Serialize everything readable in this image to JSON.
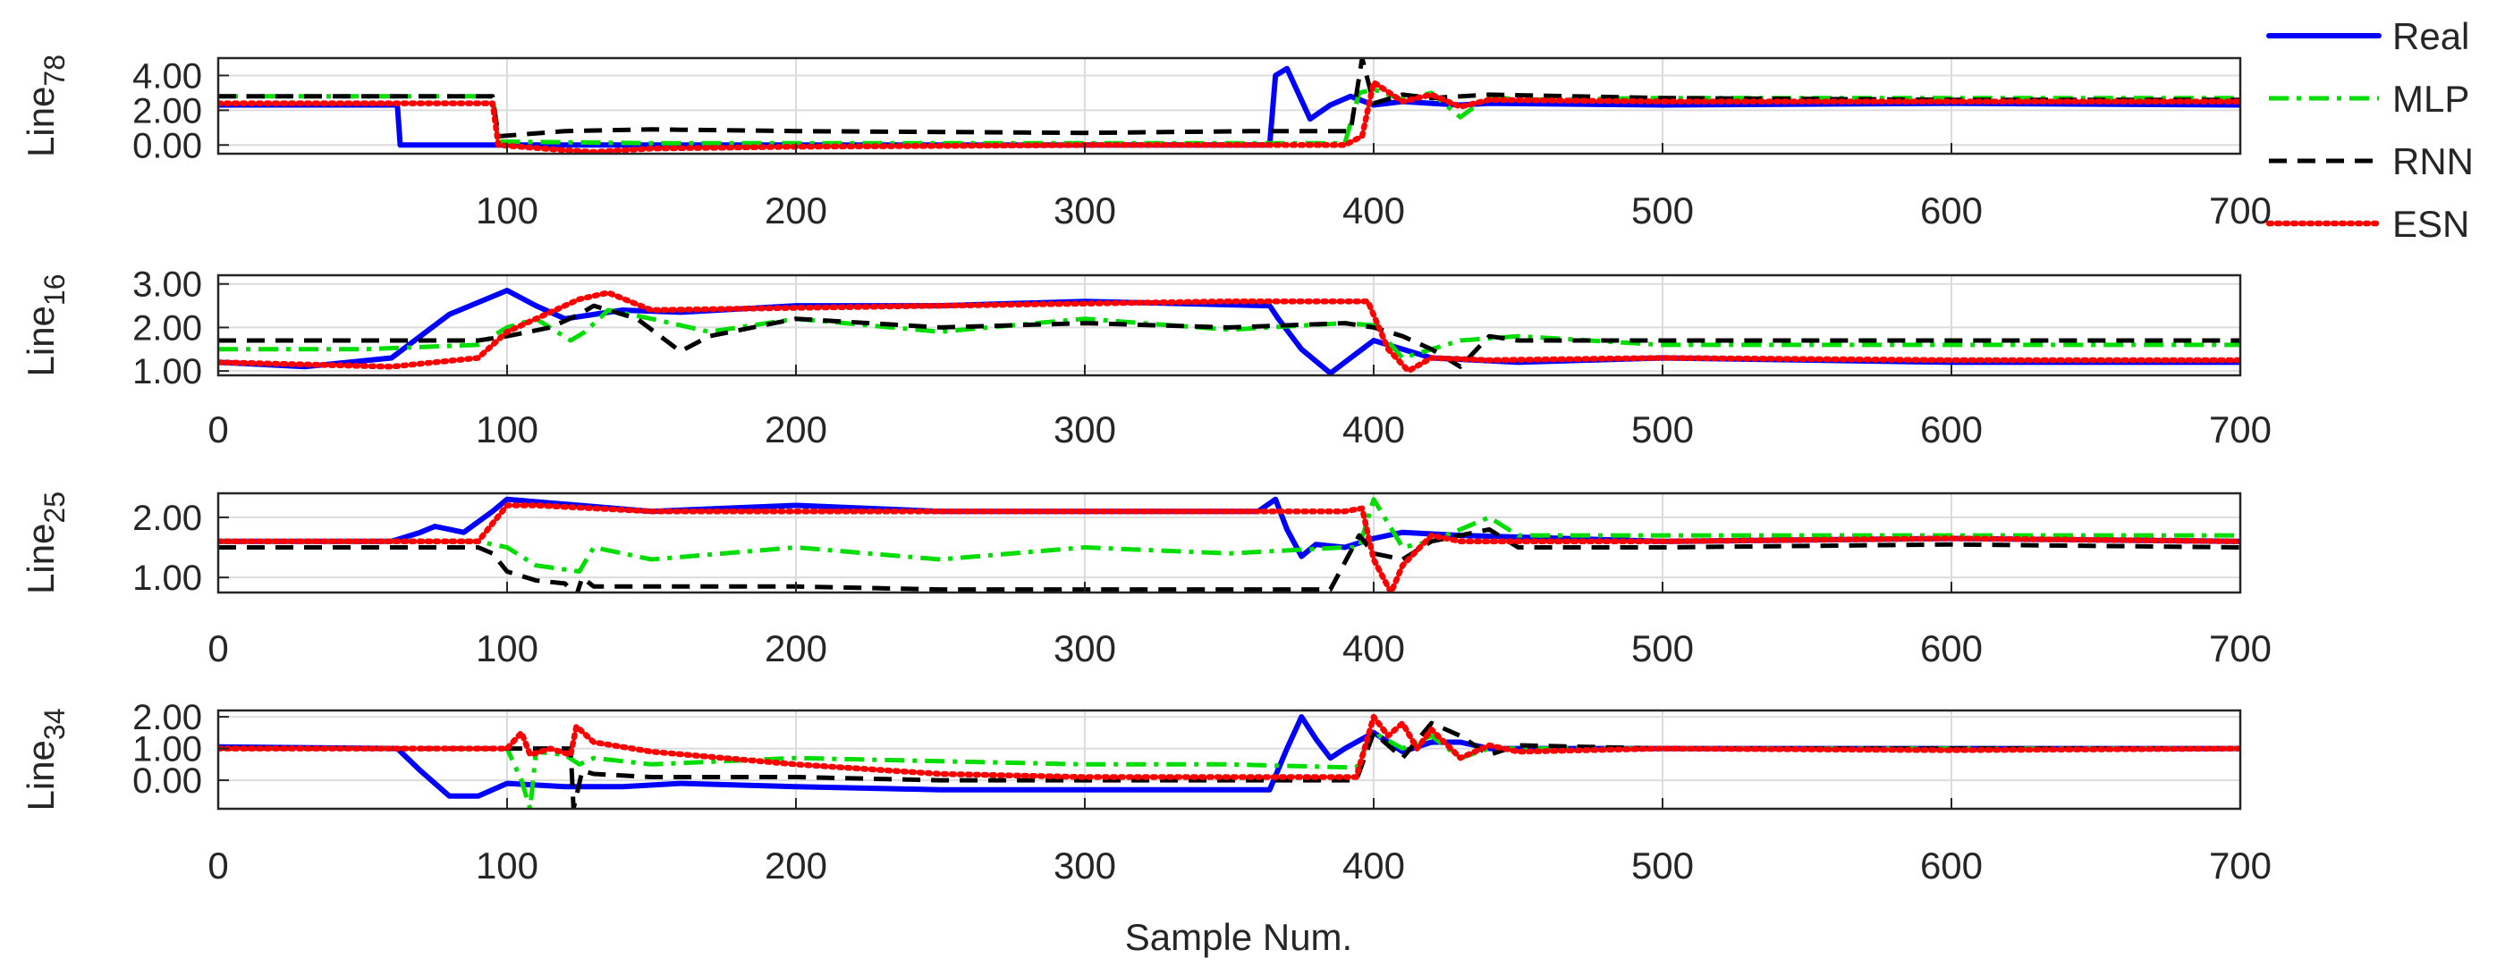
{
  "chart_data": {
    "type": "line",
    "xlabel": "Sample Num.",
    "xlim": [
      0,
      700
    ],
    "x_ticks": [
      "0",
      "100",
      "200",
      "300",
      "400",
      "500",
      "600",
      "700"
    ],
    "legend": {
      "placement": "top-right",
      "entries": [
        {
          "name": "Real",
          "color": "#0000ff",
          "style": "solid"
        },
        {
          "name": "MLP",
          "color": "#00dd00",
          "style": "dash-dot"
        },
        {
          "name": "RNN",
          "color": "#000000",
          "style": "dashed"
        },
        {
          "name": "ESN",
          "color": "#ff0000",
          "style": "dotted"
        }
      ]
    },
    "panels": [
      {
        "ylabel_base": "Line",
        "ylabel_sub": "78",
        "ylim": [
          -0.5,
          5.0
        ],
        "y_ticks": [
          "0.00",
          "2.00",
          "4.00"
        ],
        "y_tick_values": [
          0,
          2,
          4
        ],
        "show_zero_tick_label": false,
        "series": [
          {
            "name": "Real",
            "x": [
              0,
              62,
              63,
              100,
              200,
              300,
              364,
              366,
              370,
              378,
              385,
              392,
              400,
              410,
              420,
              430,
              440,
              500,
              600,
              700
            ],
            "y": [
              2.3,
              2.3,
              0.0,
              0.0,
              0.0,
              0.0,
              0.0,
              4.0,
              4.4,
              1.5,
              2.3,
              2.8,
              2.3,
              2.5,
              2.4,
              2.3,
              2.4,
              2.3,
              2.4,
              2.3
            ]
          },
          {
            "name": "MLP",
            "x": [
              0,
              95,
              97,
              150,
              200,
              300,
              390,
              395,
              400,
              410,
              420,
              430,
              440,
              450,
              500,
              600,
              700
            ],
            "y": [
              2.8,
              2.8,
              0.2,
              0.1,
              0.1,
              0.1,
              0.1,
              3.0,
              3.2,
              2.6,
              3.0,
              1.6,
              2.8,
              2.6,
              2.7,
              2.7,
              2.7
            ]
          },
          {
            "name": "RNN",
            "x": [
              0,
              95,
              97,
              120,
              150,
              200,
              300,
              360,
              392,
              396,
              400,
              410,
              420,
              440,
              500,
              600,
              700
            ],
            "y": [
              2.8,
              2.8,
              0.5,
              0.8,
              0.9,
              0.8,
              0.7,
              0.8,
              0.8,
              5.0,
              2.4,
              2.9,
              2.7,
              2.9,
              2.7,
              2.6,
              2.6
            ]
          },
          {
            "name": "ESN",
            "x": [
              0,
              95,
              97,
              120,
              130,
              150,
              200,
              300,
              390,
              396,
              400,
              410,
              420,
              430,
              440,
              500,
              600,
              700
            ],
            "y": [
              2.4,
              2.4,
              0.0,
              -0.3,
              -0.4,
              -0.2,
              -0.1,
              0.0,
              0.0,
              0.5,
              3.6,
              2.5,
              2.9,
              2.2,
              2.6,
              2.5,
              2.5,
              2.5
            ]
          }
        ]
      },
      {
        "ylabel_base": "Line",
        "ylabel_sub": "16",
        "ylim": [
          0.9,
          3.2
        ],
        "y_ticks": [
          "1.00",
          "2.00",
          "3.00"
        ],
        "y_tick_values": [
          1,
          2,
          3
        ],
        "series": [
          {
            "name": "Real",
            "x": [
              0,
              30,
              60,
              80,
              100,
              110,
              120,
              140,
              160,
              200,
              250,
              300,
              364,
              367,
              375,
              385,
              390,
              400,
              410,
              420,
              450,
              500,
              600,
              700
            ],
            "y": [
              1.2,
              1.1,
              1.3,
              2.3,
              2.85,
              2.5,
              2.2,
              2.4,
              2.35,
              2.5,
              2.5,
              2.6,
              2.5,
              2.2,
              1.5,
              0.95,
              1.2,
              1.7,
              1.5,
              1.3,
              1.2,
              1.3,
              1.2,
              1.2
            ]
          },
          {
            "name": "MLP",
            "x": [
              0,
              50,
              90,
              100,
              110,
              122,
              127,
              135,
              150,
              170,
              200,
              250,
              300,
              350,
              390,
              400,
              410,
              420,
              430,
              450,
              500,
              600,
              700
            ],
            "y": [
              1.5,
              1.5,
              1.6,
              2.0,
              2.2,
              1.7,
              1.9,
              2.4,
              2.2,
              1.9,
              2.2,
              1.9,
              2.2,
              1.95,
              2.1,
              2.05,
              1.3,
              1.5,
              1.7,
              1.8,
              1.6,
              1.6,
              1.6
            ]
          },
          {
            "name": "RNN",
            "x": [
              0,
              60,
              90,
              100,
              115,
              125,
              130,
              145,
              160,
              170,
              200,
              250,
              300,
              350,
              390,
              400,
              410,
              420,
              430,
              440,
              450,
              500,
              600,
              700
            ],
            "y": [
              1.7,
              1.7,
              1.7,
              1.8,
              2.0,
              2.3,
              2.5,
              2.2,
              1.45,
              1.8,
              2.2,
              2.0,
              2.1,
              2.0,
              2.1,
              2.0,
              1.8,
              1.5,
              1.1,
              1.8,
              1.7,
              1.7,
              1.7,
              1.7
            ]
          },
          {
            "name": "ESN",
            "x": [
              0,
              60,
              90,
              100,
              110,
              125,
              135,
              150,
              200,
              250,
              300,
              350,
              390,
              398,
              405,
              412,
              420,
              440,
              500,
              600,
              700
            ],
            "y": [
              1.2,
              1.1,
              1.3,
              1.9,
              2.2,
              2.65,
              2.8,
              2.4,
              2.45,
              2.5,
              2.55,
              2.6,
              2.6,
              2.6,
              1.5,
              1.0,
              1.3,
              1.25,
              1.3,
              1.25,
              1.25
            ]
          }
        ]
      },
      {
        "ylabel_base": "Line",
        "ylabel_sub": "25",
        "ylim": [
          0.75,
          2.4
        ],
        "y_ticks": [
          "1.00",
          "2.00"
        ],
        "y_tick_values": [
          1,
          2
        ],
        "series": [
          {
            "name": "Real",
            "x": [
              0,
              60,
              70,
              75,
              85,
              95,
              100,
              150,
              200,
              250,
              300,
              360,
              366,
              370,
              375,
              380,
              390,
              400,
              410,
              430,
              500,
              600,
              700
            ],
            "y": [
              1.6,
              1.6,
              1.75,
              1.85,
              1.75,
              2.1,
              2.3,
              2.1,
              2.2,
              2.1,
              2.1,
              2.1,
              2.3,
              1.8,
              1.35,
              1.55,
              1.5,
              1.65,
              1.75,
              1.7,
              1.6,
              1.65,
              1.6
            ]
          },
          {
            "name": "MLP",
            "x": [
              0,
              90,
              100,
              110,
              125,
              130,
              150,
              200,
              250,
              300,
              350,
              390,
              395,
              400,
              410,
              420,
              430,
              440,
              450,
              500,
              600,
              700
            ],
            "y": [
              1.6,
              1.6,
              1.5,
              1.2,
              1.1,
              1.5,
              1.3,
              1.5,
              1.3,
              1.5,
              1.4,
              1.5,
              1.5,
              2.3,
              1.5,
              1.6,
              1.8,
              2.0,
              1.7,
              1.7,
              1.7,
              1.7
            ]
          },
          {
            "name": "RNN",
            "x": [
              0,
              90,
              95,
              100,
              110,
              120,
              124,
              126,
              130,
              150,
              200,
              250,
              300,
              350,
              385,
              395,
              400,
              410,
              420,
              440,
              450,
              500,
              600,
              700
            ],
            "y": [
              1.5,
              1.5,
              1.4,
              1.1,
              0.95,
              0.9,
              0.7,
              1.0,
              0.85,
              0.85,
              0.85,
              0.8,
              0.8,
              0.8,
              0.8,
              1.7,
              1.4,
              1.3,
              1.6,
              1.8,
              1.5,
              1.5,
              1.55,
              1.5
            ]
          },
          {
            "name": "ESN",
            "x": [
              0,
              90,
              100,
              110,
              150,
              200,
              250,
              300,
              350,
              390,
              396,
              400,
              406,
              410,
              420,
              430,
              450,
              500,
              600,
              700
            ],
            "y": [
              1.6,
              1.6,
              2.2,
              2.2,
              2.1,
              2.1,
              2.1,
              2.1,
              2.1,
              2.1,
              2.15,
              1.3,
              0.75,
              1.2,
              1.7,
              1.6,
              1.6,
              1.6,
              1.65,
              1.6
            ]
          }
        ]
      },
      {
        "ylabel_base": "Line",
        "ylabel_sub": "34",
        "ylim": [
          -0.9,
          2.2
        ],
        "y_ticks": [
          "0.00",
          "1.00",
          "2.00"
        ],
        "y_tick_values": [
          0,
          1,
          2
        ],
        "series": [
          {
            "name": "Real",
            "x": [
              0,
              62,
              70,
              80,
              90,
              100,
              120,
              140,
              160,
              200,
              250,
              300,
              364,
              370,
              375,
              380,
              385,
              390,
              400,
              410,
              420,
              430,
              440,
              500,
              600,
              700
            ],
            "y": [
              1.05,
              1.0,
              0.3,
              -0.5,
              -0.5,
              -0.1,
              -0.2,
              -0.2,
              -0.1,
              -0.2,
              -0.3,
              -0.3,
              -0.3,
              1.0,
              2.0,
              1.3,
              0.7,
              1.0,
              1.5,
              0.9,
              1.2,
              1.2,
              1.0,
              1.0,
              1.0,
              1.0
            ]
          },
          {
            "name": "MLP",
            "x": [
              0,
              100,
              105,
              108,
              110,
              120,
              125,
              130,
              150,
              200,
              250,
              300,
              350,
              394,
              398,
              402,
              410,
              420,
              430,
              440,
              500,
              600,
              700
            ],
            "y": [
              1.0,
              1.0,
              0.0,
              -0.9,
              0.9,
              0.8,
              0.5,
              0.7,
              0.5,
              0.7,
              0.6,
              0.5,
              0.5,
              0.4,
              1.2,
              1.4,
              1.0,
              1.4,
              0.7,
              1.0,
              1.0,
              1.0,
              1.0
            ]
          },
          {
            "name": "RNN",
            "x": [
              0,
              122,
              123,
              126,
              130,
              150,
              200,
              250,
              300,
              350,
              394,
              400,
              410,
              420,
              430,
              440,
              450,
              500,
              600,
              700
            ],
            "y": [
              1.0,
              1.0,
              -0.9,
              0.3,
              0.2,
              0.1,
              0.1,
              0.0,
              0.0,
              0.0,
              0.0,
              1.5,
              0.7,
              1.8,
              1.4,
              0.8,
              1.1,
              1.0,
              1.0,
              1.0
            ]
          },
          {
            "name": "ESN",
            "x": [
              0,
              100,
              105,
              108,
              115,
              122,
              124,
              130,
              150,
              200,
              250,
              300,
              350,
              394,
              400,
              405,
              410,
              415,
              420,
              430,
              440,
              450,
              500,
              600,
              700
            ],
            "y": [
              1.0,
              1.0,
              1.5,
              0.8,
              1.0,
              0.8,
              1.7,
              1.2,
              0.9,
              0.5,
              0.2,
              0.1,
              0.1,
              0.1,
              2.0,
              1.4,
              1.8,
              1.0,
              1.6,
              0.7,
              1.1,
              0.9,
              1.0,
              0.95,
              1.0
            ]
          }
        ]
      }
    ]
  }
}
